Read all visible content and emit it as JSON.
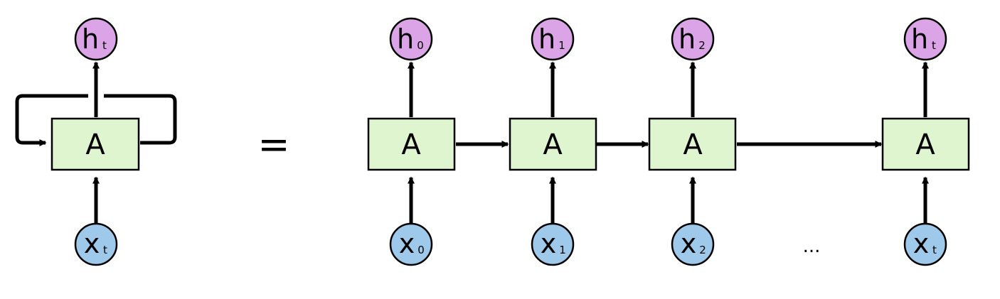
{
  "colors": {
    "cell_fill": "#dff5cf",
    "output_fill": "#dba4e6",
    "input_fill": "#9fc9ea",
    "stroke": "#000000",
    "background": "#ffffff"
  },
  "rolled": {
    "output": {
      "main": "h",
      "sub": "t"
    },
    "cell": "A",
    "input": {
      "main": "x",
      "sub": "t"
    }
  },
  "equals": "=",
  "unrolled": [
    {
      "output": {
        "main": "h",
        "sub": "0"
      },
      "cell": "A",
      "input": {
        "main": "x",
        "sub": "0"
      }
    },
    {
      "output": {
        "main": "h",
        "sub": "1"
      },
      "cell": "A",
      "input": {
        "main": "x",
        "sub": "1"
      }
    },
    {
      "output": {
        "main": "h",
        "sub": "2"
      },
      "cell": "A",
      "input": {
        "main": "x",
        "sub": "2"
      }
    },
    {
      "output": {
        "main": "h",
        "sub": "t"
      },
      "cell": "A",
      "input": {
        "main": "x",
        "sub": "t"
      }
    }
  ],
  "ellipsis": "..."
}
